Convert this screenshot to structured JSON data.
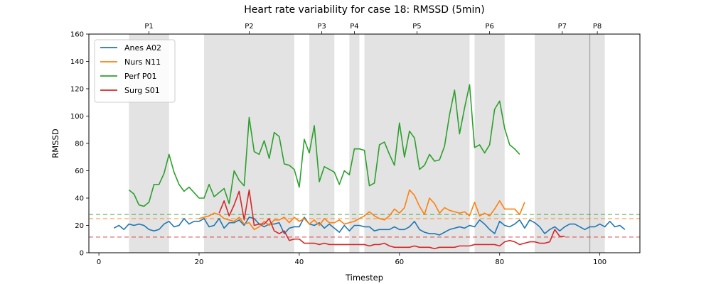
{
  "chart_data": {
    "type": "line",
    "title": "Heart rate variability for case 18: RMSSD (5min)",
    "xlabel": "Timestep",
    "ylabel": "RMSSD",
    "xlim": [
      -2,
      108
    ],
    "ylim": [
      0,
      160
    ],
    "xticks": [
      0,
      20,
      40,
      60,
      80,
      100
    ],
    "yticks": [
      0,
      20,
      40,
      60,
      80,
      100,
      120,
      140,
      160
    ],
    "grid": false,
    "legend_position": "top-left",
    "phases": [
      {
        "label": "P1",
        "start": 6,
        "end": 14
      },
      {
        "label": "P2",
        "start": 21,
        "end": 39
      },
      {
        "label": "P3",
        "start": 42,
        "end": 47
      },
      {
        "label": "P4",
        "start": 50,
        "end": 52
      },
      {
        "label": "P5",
        "start": 53,
        "end": 74
      },
      {
        "label": "P6",
        "start": 75,
        "end": 81
      },
      {
        "label": "P7",
        "start": 87,
        "end": 98
      },
      {
        "label": "P8",
        "start": 98,
        "end": 101
      }
    ],
    "phase_marker_x": 98,
    "reference_lines": [
      {
        "y": 28,
        "color": "#2ca02c"
      },
      {
        "y": 25,
        "color": "#ff7f0e"
      },
      {
        "y": 11.5,
        "color": "#d62728"
      }
    ],
    "series": [
      {
        "name": "Anes A02",
        "color": "#1f77b4",
        "x_start": 3,
        "values": [
          18,
          20,
          17,
          21,
          20,
          21,
          20,
          17,
          16,
          17,
          21,
          23,
          19,
          20,
          25,
          21,
          23,
          23,
          25,
          19,
          20,
          25,
          18,
          22,
          22,
          24,
          20,
          26,
          25,
          21,
          19,
          21,
          21,
          22,
          14,
          18,
          19,
          19,
          26,
          21,
          20,
          22,
          18,
          21,
          18,
          15,
          20,
          16,
          20,
          20,
          19,
          19,
          16,
          17,
          17,
          17,
          19,
          17,
          17,
          19,
          23,
          17,
          15,
          14,
          14,
          13,
          15,
          17,
          18,
          19,
          18,
          20,
          19,
          24,
          21,
          17,
          14,
          23,
          20,
          19,
          21,
          24,
          18,
          24,
          22,
          19,
          14,
          17,
          19,
          16,
          19,
          21,
          21,
          19,
          17,
          19,
          19,
          21,
          19,
          23,
          19,
          20,
          17
        ]
      },
      {
        "name": "Nurs N11",
        "color": "#ff7f0e",
        "x_start": 20,
        "values": [
          25,
          26,
          27,
          29,
          28,
          25,
          24,
          23,
          26,
          21,
          22,
          17,
          19,
          23,
          20,
          24,
          24,
          26,
          22,
          26,
          23,
          25,
          21,
          24,
          20,
          25,
          22,
          22,
          24,
          21,
          22,
          23,
          25,
          27,
          30,
          27,
          25,
          24,
          27,
          32,
          29,
          33,
          46,
          42,
          34,
          28,
          40,
          36,
          29,
          33,
          31,
          30,
          29,
          30,
          27,
          37,
          27,
          29,
          27,
          32,
          38,
          32,
          32,
          32,
          28,
          37
        ]
      },
      {
        "name": "Perf P01",
        "color": "#2ca02c",
        "x_start": 6,
        "values": [
          46,
          43,
          35,
          34,
          37,
          50,
          50,
          58,
          72,
          59,
          50,
          45,
          48,
          44,
          40,
          40,
          50,
          41,
          44,
          47,
          36,
          60,
          53,
          49,
          99,
          74,
          72,
          82,
          69,
          88,
          85,
          65,
          64,
          61,
          48,
          83,
          73,
          93,
          52,
          63,
          61,
          59,
          50,
          60,
          57,
          76,
          76,
          75,
          49,
          51,
          79,
          81,
          72,
          64,
          95,
          70,
          89,
          84,
          61,
          64,
          72,
          67,
          68,
          78,
          101,
          119,
          87,
          106,
          123,
          77,
          79,
          73,
          79,
          105,
          111,
          91,
          79,
          76,
          72
        ]
      },
      {
        "name": "Surg S01",
        "color": "#d62728",
        "x_start": 24,
        "values": [
          29,
          38,
          27,
          35,
          45,
          24,
          46,
          20,
          21,
          21,
          25,
          16,
          14,
          16,
          9,
          10,
          10,
          7,
          7,
          7,
          6,
          7,
          6,
          6,
          6,
          6,
          6,
          6,
          6,
          6,
          5,
          6,
          6,
          7,
          5,
          4,
          4,
          4,
          4,
          5,
          4,
          4,
          4,
          3,
          4,
          4,
          4,
          4,
          5,
          5,
          5,
          6,
          6,
          6,
          6,
          6,
          5,
          8,
          9,
          8,
          6,
          7,
          8,
          8,
          7,
          7,
          8,
          17,
          12,
          12
        ]
      }
    ]
  }
}
